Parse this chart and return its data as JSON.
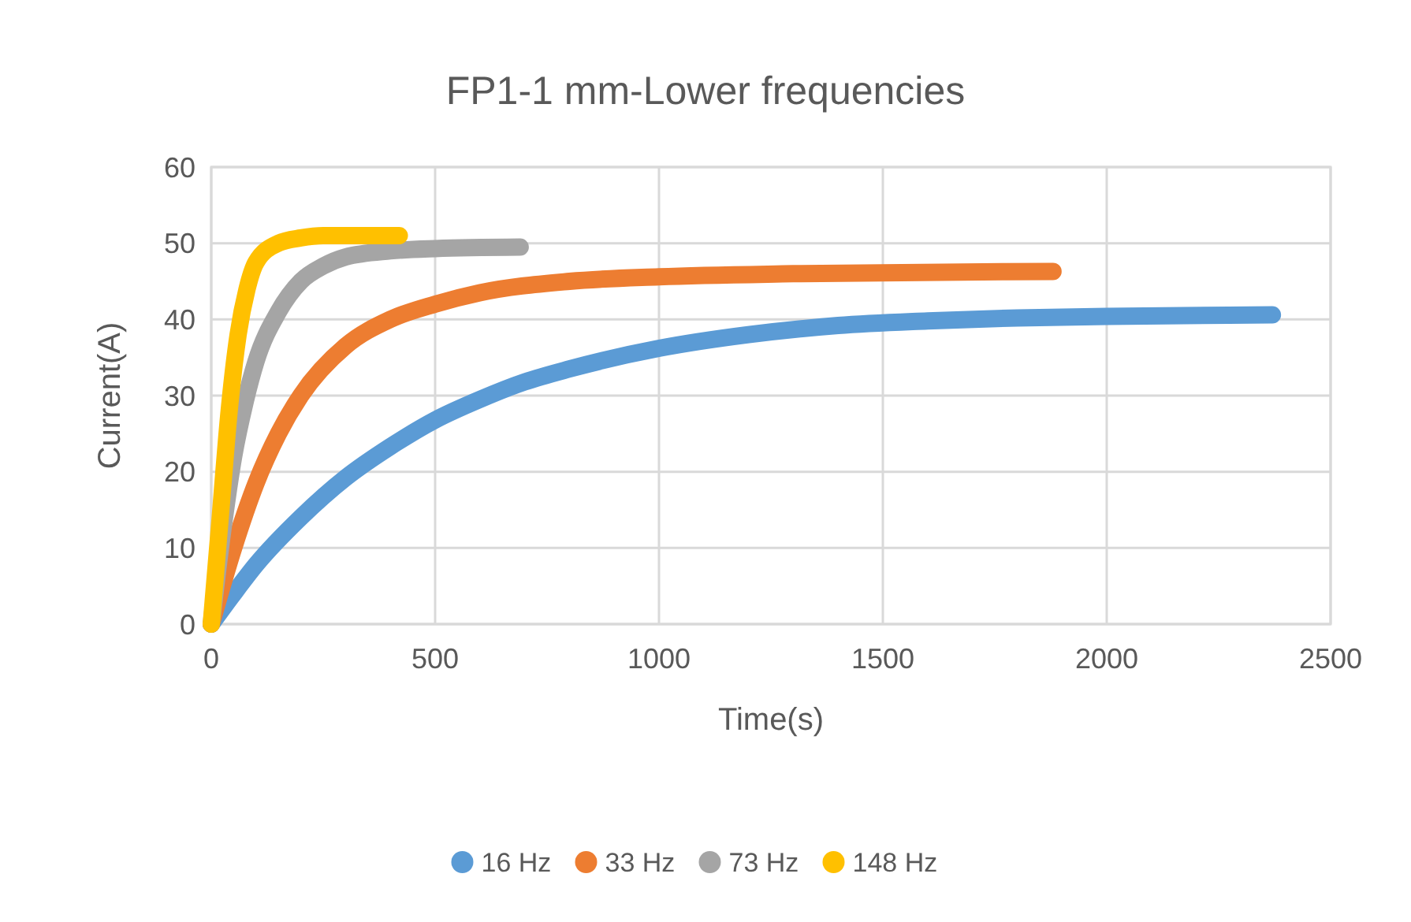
{
  "chart_data": {
    "type": "line",
    "title": "FP1-1 mm-Lower frequencies",
    "xlabel": "Time(s)",
    "ylabel": "Current(A)",
    "xlim": [
      0,
      2500
    ],
    "xticks": [
      0,
      500,
      1000,
      1500,
      2000,
      2500
    ],
    "ylim": [
      0,
      60
    ],
    "yticks": [
      0,
      10,
      20,
      30,
      40,
      50,
      60
    ],
    "grid": true,
    "legend": "bottom",
    "line_style": "solid",
    "series": [
      {
        "name": "16 Hz",
        "color": "#5b9bd5",
        "x": [
          0,
          50,
          100,
          200,
          300,
          400,
          500,
          600,
          700,
          800,
          1000,
          1200,
          1400,
          1600,
          1800,
          2000,
          2370
        ],
        "values": [
          0,
          4,
          7.8,
          14,
          19.2,
          23.3,
          26.8,
          29.5,
          31.8,
          33.5,
          36.2,
          38,
          39.2,
          39.8,
          40.2,
          40.4,
          40.6
        ]
      },
      {
        "name": "33 Hz",
        "color": "#ed7d31",
        "x": [
          0,
          50,
          100,
          150,
          200,
          300,
          400,
          500,
          600,
          800,
          1000,
          1300,
          1880
        ],
        "values": [
          0,
          10,
          18.5,
          25,
          30,
          36.5,
          40,
          42,
          43.5,
          45,
          45.6,
          46,
          46.3
        ]
      },
      {
        "name": "73 Hz",
        "color": "#a5a5a5",
        "x": [
          0,
          25,
          50,
          75,
          100,
          150,
          200,
          250,
          300,
          400,
          500,
          690
        ],
        "values": [
          0,
          12,
          22,
          29,
          34.5,
          41,
          45,
          47,
          48.2,
          49,
          49.3,
          49.5
        ]
      },
      {
        "name": "148 Hz",
        "color": "#ffc000",
        "x": [
          0,
          20,
          40,
          60,
          80,
          100,
          150,
          200,
          250,
          420
        ],
        "values": [
          0,
          14,
          28,
          38,
          44,
          47.5,
          50,
          50.7,
          51,
          51
        ]
      }
    ]
  }
}
